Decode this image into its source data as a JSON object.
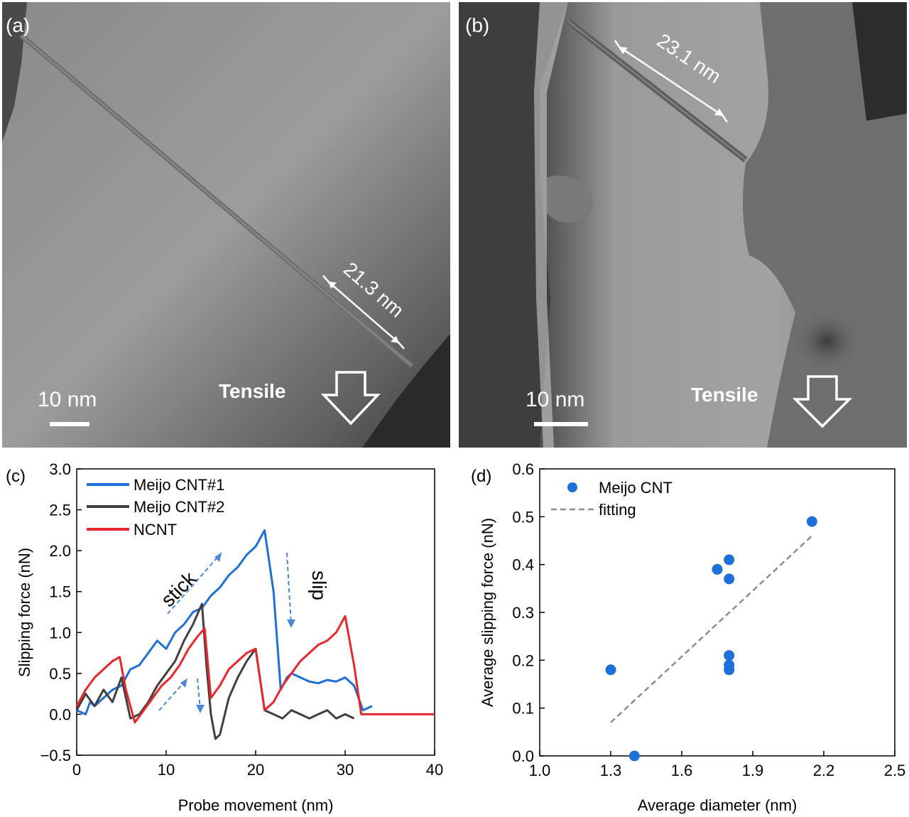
{
  "panels": {
    "a": {
      "label": "(a)",
      "measure": "21.3 nm",
      "scale_bar": "10 nm",
      "tensile": "Tensile"
    },
    "b": {
      "label": "(b)",
      "measure": "23.1 nm",
      "scale_bar": "10 nm",
      "tensile": "Tensile"
    }
  },
  "colors": {
    "meijo1": "#1f6fd8",
    "meijo2": "#404040",
    "ncnt": "#e8262b",
    "marker": "#1f6fd8",
    "fit": "#8c8c8c",
    "annotation": "#4a86d8"
  },
  "chart_data": [
    {
      "panel": "(c)",
      "type": "line",
      "xlabel": "Probe movement (nm)",
      "ylabel": "Slipping force (nN)",
      "xlim": [
        0,
        40
      ],
      "ylim": [
        -0.5,
        3.0
      ],
      "xticks": [
        "0",
        "10",
        "20",
        "30",
        "40"
      ],
      "yticks": [
        "−0.5",
        "0.0",
        "0.5",
        "1.0",
        "1.5",
        "2.0",
        "2.5",
        "3.0"
      ],
      "legend_position": "top-left",
      "annotations": [
        "stick",
        "slip"
      ],
      "series": [
        {
          "name": "Meijo CNT#1",
          "color": "#1f6fd8",
          "x": [
            0,
            1,
            1.5,
            2,
            3,
            4,
            5,
            6,
            7,
            8,
            9,
            10,
            11,
            12,
            13,
            14,
            15,
            16,
            17,
            18,
            19,
            20,
            21,
            22,
            22.8,
            23.5,
            24,
            25,
            26,
            27,
            28,
            29,
            30,
            31,
            32,
            33
          ],
          "y": [
            0.05,
            0.0,
            0.15,
            0.1,
            0.2,
            0.3,
            0.35,
            0.55,
            0.6,
            0.75,
            0.9,
            0.8,
            1.0,
            1.1,
            1.25,
            1.3,
            1.45,
            1.55,
            1.7,
            1.8,
            1.95,
            2.05,
            2.25,
            1.5,
            0.3,
            0.45,
            0.5,
            0.45,
            0.4,
            0.38,
            0.42,
            0.4,
            0.45,
            0.35,
            0.05,
            0.1
          ]
        },
        {
          "name": "Meijo CNT#2",
          "color": "#404040",
          "x": [
            0,
            1,
            2,
            3,
            4,
            5,
            6,
            7,
            8,
            9,
            10,
            11,
            12,
            13,
            14,
            14.5,
            15,
            15.5,
            16,
            17,
            18,
            19,
            20,
            21,
            22,
            23,
            24,
            25,
            26,
            27,
            28,
            29,
            30,
            31
          ],
          "y": [
            0.05,
            0.25,
            0.1,
            0.3,
            0.15,
            0.45,
            -0.05,
            0.0,
            0.15,
            0.35,
            0.5,
            0.65,
            0.9,
            1.1,
            1.35,
            0.6,
            0.0,
            -0.3,
            -0.25,
            0.2,
            0.45,
            0.65,
            0.8,
            0.05,
            0.0,
            -0.05,
            0.05,
            0.0,
            -0.05,
            0.0,
            0.05,
            -0.05,
            0.0,
            -0.05
          ]
        },
        {
          "name": "NCNT",
          "color": "#e8262b",
          "x": [
            0,
            1,
            2,
            3,
            4,
            4.8,
            5.5,
            6.5,
            7.5,
            8.5,
            9.5,
            10.5,
            11.5,
            12.5,
            13.5,
            14.3,
            15,
            16,
            17,
            18,
            19,
            20,
            21,
            22,
            23,
            24,
            25,
            26,
            27,
            28,
            29,
            30,
            31,
            31.8,
            35,
            40
          ],
          "y": [
            0.1,
            0.3,
            0.45,
            0.55,
            0.65,
            0.7,
            0.3,
            -0.1,
            0.05,
            0.2,
            0.35,
            0.45,
            0.6,
            0.8,
            0.95,
            1.05,
            0.2,
            0.35,
            0.55,
            0.65,
            0.75,
            0.8,
            0.05,
            0.15,
            0.35,
            0.5,
            0.65,
            0.75,
            0.85,
            0.9,
            1.0,
            1.2,
            0.6,
            0.0,
            0.0,
            0.0
          ]
        }
      ]
    },
    {
      "panel": "(d)",
      "type": "scatter",
      "xlabel": "Average diameter (nm)",
      "ylabel": "Average slipping force (nN)",
      "xlim": [
        1.0,
        2.5
      ],
      "ylim": [
        0.0,
        0.6
      ],
      "xticks": [
        "1.0",
        "1.3",
        "1.6",
        "1.9",
        "2.2",
        "2.5"
      ],
      "yticks": [
        "0.0",
        "0.1",
        "0.2",
        "0.3",
        "0.4",
        "0.5",
        "0.6"
      ],
      "legend_position": "top-left",
      "series": [
        {
          "name": "Meijo CNT",
          "color": "#1f6fd8",
          "x": [
            1.3,
            1.4,
            1.75,
            1.8,
            1.8,
            1.8,
            1.8,
            1.8,
            2.15
          ],
          "y": [
            0.18,
            0.0,
            0.39,
            0.41,
            0.37,
            0.21,
            0.19,
            0.18,
            0.49
          ]
        },
        {
          "name": "fitting",
          "color": "#8c8c8c",
          "x": [
            1.3,
            2.15
          ],
          "y": [
            0.07,
            0.46
          ]
        }
      ]
    }
  ]
}
